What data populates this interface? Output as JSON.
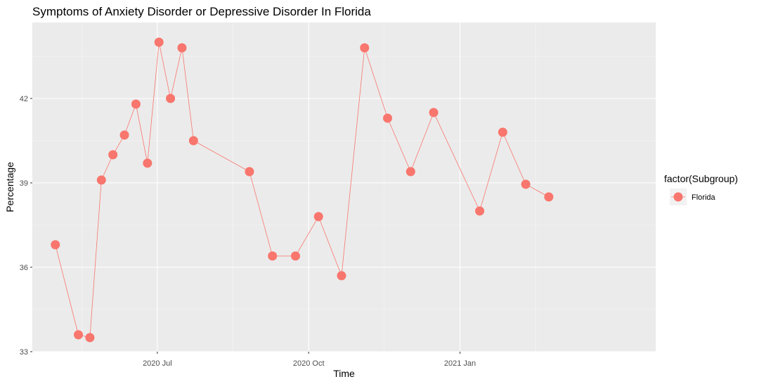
{
  "chart_data": {
    "type": "line",
    "title": "Symptoms of Anxiety Disorder or Depressive Disorder In Florida",
    "xlabel": "Time",
    "ylabel": "Percentage",
    "x_range": [
      "2020-04-16",
      "2021-04-30"
    ],
    "ylim": [
      33,
      44.7
    ],
    "y_ticks": [
      33,
      36,
      39,
      42
    ],
    "x_ticks": [
      {
        "date": "2020-07-01",
        "label": "2020 Jul"
      },
      {
        "date": "2020-10-01",
        "label": "2020 Oct"
      },
      {
        "date": "2021-01-01",
        "label": "2021 Jan"
      }
    ],
    "grid": true,
    "legend": {
      "title": "factor(Subgroup)",
      "position": "right"
    },
    "series": [
      {
        "name": "Florida",
        "color": "#f8766d",
        "points": [
          {
            "x": "2020-04-30",
            "y": 36.8
          },
          {
            "x": "2020-05-14",
            "y": 33.6
          },
          {
            "x": "2020-05-21",
            "y": 33.5
          },
          {
            "x": "2020-05-28",
            "y": 39.1
          },
          {
            "x": "2020-06-04",
            "y": 40.0
          },
          {
            "x": "2020-06-11",
            "y": 40.7
          },
          {
            "x": "2020-06-18",
            "y": 41.8
          },
          {
            "x": "2020-06-25",
            "y": 39.7
          },
          {
            "x": "2020-07-02",
            "y": 44.0
          },
          {
            "x": "2020-07-09",
            "y": 42.0
          },
          {
            "x": "2020-07-16",
            "y": 43.8
          },
          {
            "x": "2020-07-23",
            "y": 40.5
          },
          {
            "x": "2020-08-26",
            "y": 39.4
          },
          {
            "x": "2020-09-09",
            "y": 36.4
          },
          {
            "x": "2020-09-23",
            "y": 36.4
          },
          {
            "x": "2020-10-07",
            "y": 37.8
          },
          {
            "x": "2020-10-21",
            "y": 35.7
          },
          {
            "x": "2020-11-04",
            "y": 43.8
          },
          {
            "x": "2020-11-18",
            "y": 41.3
          },
          {
            "x": "2020-12-02",
            "y": 39.4
          },
          {
            "x": "2020-12-16",
            "y": 41.5
          },
          {
            "x": "2021-01-13",
            "y": 38.0
          },
          {
            "x": "2021-01-27",
            "y": 40.8
          },
          {
            "x": "2021-02-10",
            "y": 38.95
          },
          {
            "x": "2021-02-24",
            "y": 38.5
          }
        ]
      }
    ]
  }
}
